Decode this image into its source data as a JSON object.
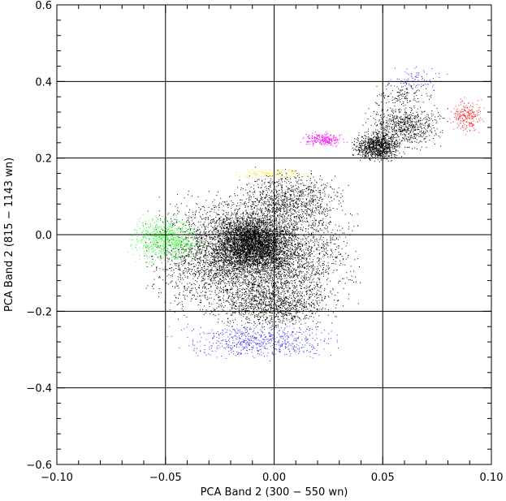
{
  "chart_data": {
    "type": "scatter",
    "title": "",
    "xlabel": "PCA Band 2 (300 − 550 wn)",
    "ylabel": "PCA Band 2 (815 − 1143 wn)",
    "xlim": [
      -0.1,
      0.1
    ],
    "ylim": [
      -0.6,
      0.6
    ],
    "grid": true,
    "grid_x": [
      -0.05,
      0.0,
      0.05
    ],
    "grid_y": [
      -0.4,
      -0.2,
      0.0,
      0.2,
      0.4
    ],
    "xticks": [
      -0.1,
      -0.05,
      0.0,
      0.05,
      0.1
    ],
    "xtick_labels": [
      "−0.10",
      "−0.05",
      "0.00",
      "0.05",
      "0.10"
    ],
    "yticks": [
      -0.6,
      -0.4,
      -0.2,
      0.0,
      0.2,
      0.4,
      0.6
    ],
    "ytick_labels": [
      "−0.6",
      "−0.4",
      "−0.2",
      "0.0",
      "0.2",
      "0.4",
      "0.6"
    ],
    "x_minor_step": 0.01,
    "y_minor_step": 0.04,
    "series": [
      {
        "color": "#000000",
        "clusters": [
          {
            "x": [
              -0.06,
              0.04
            ],
            "y": [
              -0.22,
              0.12
            ],
            "n": 5200
          },
          {
            "x": [
              -0.03,
              0.01
            ],
            "y": [
              -0.1,
              0.06
            ],
            "n": 2600
          },
          {
            "x": [
              -0.03,
              0.03
            ],
            "y": [
              -0.25,
              -0.12
            ],
            "n": 900
          },
          {
            "x": [
              -0.02,
              0.035
            ],
            "y": [
              0.0,
              0.18
            ],
            "n": 900
          },
          {
            "x": [
              0.035,
              0.06
            ],
            "y": [
              0.19,
              0.27
            ],
            "n": 900
          },
          {
            "x": [
              0.04,
              0.08
            ],
            "y": [
              0.22,
              0.35
            ],
            "n": 700
          },
          {
            "x": [
              0.045,
              0.075
            ],
            "y": [
              0.33,
              0.4
            ],
            "n": 120
          }
        ]
      },
      {
        "color": "#3333ff",
        "clusters": [
          {
            "x": [
              -0.05,
              0.035
            ],
            "y": [
              -0.33,
              -0.22
            ],
            "n": 650
          },
          {
            "x": [
              0.05,
              0.08
            ],
            "y": [
              0.37,
              0.44
            ],
            "n": 90
          }
        ]
      },
      {
        "color": "#33ff33",
        "clusters": [
          {
            "x": [
              -0.068,
              -0.031
            ],
            "y": [
              -0.08,
              0.06
            ],
            "n": 800
          }
        ]
      },
      {
        "color": "#ffdd00",
        "clusters": [
          {
            "x": [
              -0.02,
              0.018
            ],
            "y": [
              0.145,
              0.175
            ],
            "n": 110
          }
        ]
      },
      {
        "color": "#ff00ff",
        "clusters": [
          {
            "x": [
              0.011,
              0.034
            ],
            "y": [
              0.23,
              0.27
            ],
            "n": 230
          }
        ]
      },
      {
        "color": "#ff2222",
        "clusters": [
          {
            "x": [
              0.08,
              0.097
            ],
            "y": [
              0.26,
              0.36
            ],
            "n": 230
          }
        ]
      }
    ]
  }
}
